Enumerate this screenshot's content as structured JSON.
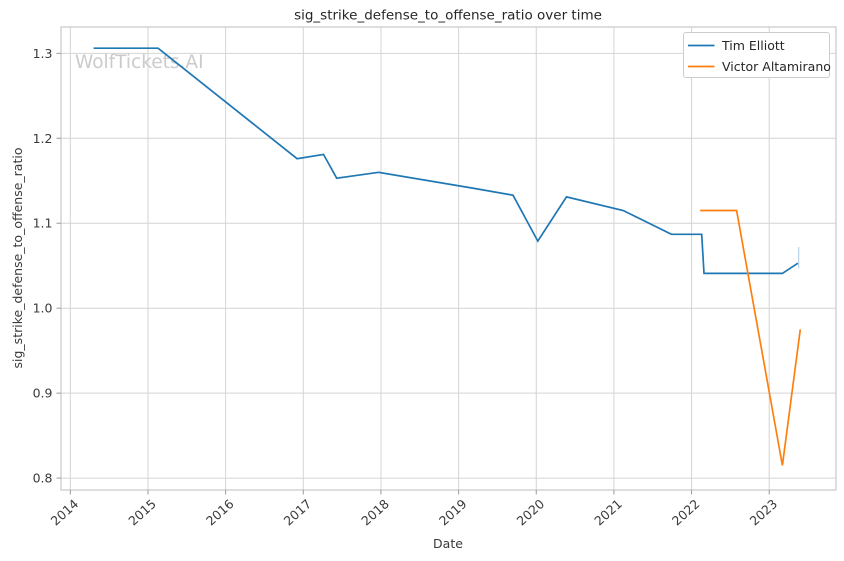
{
  "figure": {
    "title": "sig_strike_defense_to_offense_ratio over time",
    "watermark": "WolfTickets.AI",
    "xlabel": "Date",
    "ylabel": "sig_strike_defense_to_offense_ratio",
    "colors": {
      "background": "#ffffff",
      "grid": "#d4d4d4",
      "spine": "#c9c9c9",
      "tick": "#9a9a9a",
      "text": "#3a3a3a",
      "watermark": "#cbcbcb"
    }
  },
  "legend": {
    "position": "upper right",
    "entries": [
      {
        "label": "Tim Elliott",
        "color": "#1f77b4"
      },
      {
        "label": "Victor Altamirano",
        "color": "#ff7f0e"
      }
    ]
  },
  "chart_data": {
    "type": "line",
    "title": "sig_strike_defense_to_offense_ratio over time",
    "xlabel": "Date",
    "ylabel": "sig_strike_defense_to_offense_ratio",
    "grid": true,
    "legend_position": "upper right",
    "x_ticks": [
      2014,
      2015,
      2016,
      2017,
      2018,
      2019,
      2020,
      2021,
      2022,
      2023
    ],
    "y_ticks": [
      0.8,
      0.9,
      1.0,
      1.1,
      1.2,
      1.3
    ],
    "xlim": [
      2013.88,
      2023.86
    ],
    "ylim": [
      0.786,
      1.331
    ],
    "series": [
      {
        "name": "Tim Elliott",
        "color": "#1f77b4",
        "x": [
          2014.3,
          2015.13,
          2016.92,
          2017.26,
          2017.43,
          2017.97,
          2019.2,
          2019.7,
          2020.02,
          2020.39,
          2021.12,
          2021.74,
          2022.13,
          2022.16,
          2023.17,
          2023.37
        ],
        "y": [
          1.306,
          1.306,
          1.176,
          1.181,
          1.153,
          1.16,
          1.141,
          1.133,
          1.079,
          1.131,
          1.115,
          1.087,
          1.087,
          1.041,
          1.041,
          1.053
        ]
      },
      {
        "name": "Victor Altamirano",
        "color": "#ff7f0e",
        "x": [
          2022.11,
          2022.58,
          2023.17,
          2023.4
        ],
        "y": [
          1.115,
          1.115,
          0.815,
          0.975
        ]
      }
    ],
    "annotations": [
      {
        "type": "vline-tick",
        "x": 2023.38,
        "y_from": 1.047,
        "y_to": 1.072,
        "color": "#a9c9e4"
      }
    ]
  }
}
